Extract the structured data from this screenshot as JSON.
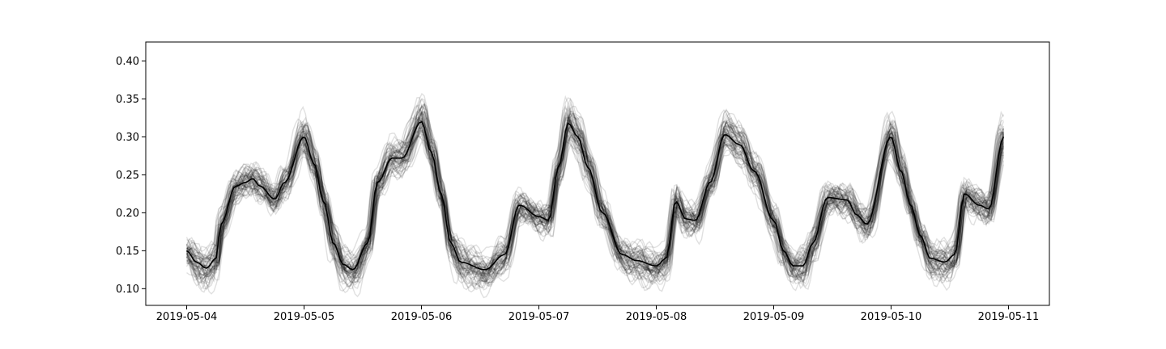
{
  "chart_data": {
    "type": "line",
    "title": "",
    "xlabel": "",
    "ylabel": "",
    "x_ticks": [
      "2019-05-04",
      "2019-05-05",
      "2019-05-06",
      "2019-05-07",
      "2019-05-08",
      "2019-05-09",
      "2019-05-10",
      "2019-05-11"
    ],
    "y_ticks": [
      "0.10",
      "0.15",
      "0.20",
      "0.25",
      "0.30",
      "0.35",
      "0.40"
    ],
    "xlim": [
      "2019-05-03T15:38",
      "2019-05-11T08:22"
    ],
    "ylim": [
      0.078,
      0.425
    ],
    "grid": false,
    "legend": "none",
    "ensemble_line_count": 60,
    "ensemble_color": "#000000",
    "ensemble_opacity": 0.12,
    "mean_color": "#000000",
    "mean_series": {
      "x": [
        "2019-05-04T00:00",
        "2019-05-04T02:00",
        "2019-05-04T04:00",
        "2019-05-04T06:00",
        "2019-05-04T07:00",
        "2019-05-04T10:00",
        "2019-05-04T12:00",
        "2019-05-04T13:30",
        "2019-05-04T15:00",
        "2019-05-04T18:00",
        "2019-05-04T20:00",
        "2019-05-05T00:00",
        "2019-05-05T02:00",
        "2019-05-05T04:00",
        "2019-05-05T06:00",
        "2019-05-05T08:00",
        "2019-05-05T10:00",
        "2019-05-05T13:00",
        "2019-05-05T15:00",
        "2019-05-05T18:00",
        "2019-05-05T20:00",
        "2019-05-06T00:00",
        "2019-05-06T02:00",
        "2019-05-06T04:00",
        "2019-05-06T06:00",
        "2019-05-06T08:00",
        "2019-05-06T13:00",
        "2019-05-06T17:00",
        "2019-05-06T20:00",
        "2019-05-07T00:00",
        "2019-05-07T02:00",
        "2019-05-07T04:00",
        "2019-05-07T06:00",
        "2019-05-07T08:00",
        "2019-05-07T10:00",
        "2019-05-07T13:00",
        "2019-05-07T17:00",
        "2019-05-07T20:00",
        "2019-05-08T00:00",
        "2019-05-08T02:00",
        "2019-05-08T04:00",
        "2019-05-08T06:00",
        "2019-05-08T08:00",
        "2019-05-08T11:00",
        "2019-05-08T14:00",
        "2019-05-08T17:00",
        "2019-05-08T20:00",
        "2019-05-09T00:00",
        "2019-05-09T02:00",
        "2019-05-09T04:00",
        "2019-05-09T06:00",
        "2019-05-09T08:00",
        "2019-05-09T11:00",
        "2019-05-09T15:00",
        "2019-05-09T17:00",
        "2019-05-09T19:00",
        "2019-05-10T00:00",
        "2019-05-10T02:00",
        "2019-05-10T04:00",
        "2019-05-10T06:00",
        "2019-05-10T08:00",
        "2019-05-10T11:00",
        "2019-05-10T13:00",
        "2019-05-10T15:00",
        "2019-05-10T18:00",
        "2019-05-10T20:00",
        "2019-05-10T23:00"
      ],
      "values": [
        0.15,
        0.135,
        0.127,
        0.14,
        0.185,
        0.235,
        0.24,
        0.245,
        0.235,
        0.218,
        0.24,
        0.3,
        0.265,
        0.215,
        0.16,
        0.132,
        0.125,
        0.16,
        0.24,
        0.272,
        0.272,
        0.32,
        0.28,
        0.225,
        0.16,
        0.135,
        0.125,
        0.145,
        0.21,
        0.195,
        0.19,
        0.26,
        0.318,
        0.3,
        0.26,
        0.2,
        0.145,
        0.137,
        0.13,
        0.14,
        0.215,
        0.192,
        0.19,
        0.24,
        0.303,
        0.29,
        0.255,
        0.19,
        0.15,
        0.13,
        0.13,
        0.16,
        0.22,
        0.217,
        0.197,
        0.185,
        0.3,
        0.255,
        0.21,
        0.17,
        0.14,
        0.135,
        0.145,
        0.225,
        0.21,
        0.205,
        0.3
      ]
    }
  }
}
